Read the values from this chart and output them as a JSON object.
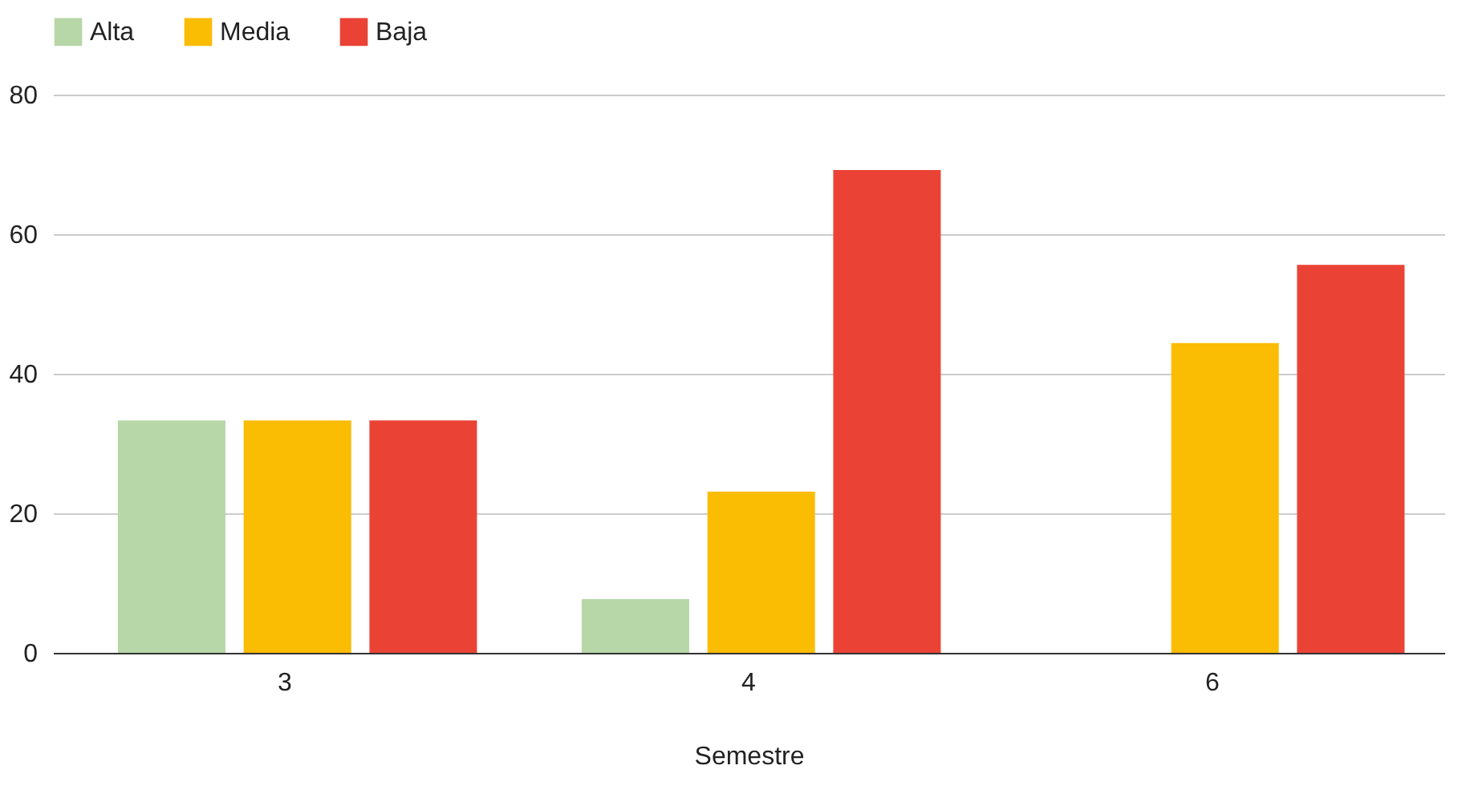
{
  "chart_data": {
    "type": "bar",
    "xlabel": "Semestre",
    "categories": [
      "3",
      "4",
      "6"
    ],
    "series": [
      {
        "name": "Alta",
        "color": "#b7d7a8",
        "values": [
          33.3,
          7.7,
          0
        ]
      },
      {
        "name": "Media",
        "color": "#fbbc04",
        "values": [
          33.3,
          23.1,
          44.4
        ]
      },
      {
        "name": "Baja",
        "color": "#ea4335",
        "values": [
          33.3,
          69.2,
          55.6
        ]
      }
    ],
    "ylim": [
      0,
      80
    ],
    "yticks": [
      0,
      20,
      40,
      60,
      80
    ],
    "grid": "y",
    "legend": "top"
  }
}
